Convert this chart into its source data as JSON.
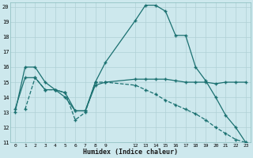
{
  "xlabel": "Humidex (Indice chaleur)",
  "background_color": "#cde8ed",
  "grid_color": "#b0d0d5",
  "line_color": "#1a7070",
  "xlim": [
    -0.5,
    23.5
  ],
  "ylim": [
    11,
    20.3
  ],
  "yticks": [
    11,
    12,
    13,
    14,
    15,
    16,
    17,
    18,
    19,
    20
  ],
  "xtick_vals": [
    0,
    1,
    2,
    3,
    4,
    5,
    6,
    7,
    8,
    9,
    12,
    13,
    14,
    15,
    16,
    17,
    18,
    19,
    20,
    21,
    22,
    23
  ],
  "xtick_labels": [
    "0",
    "1",
    "2",
    "3",
    "4",
    "5",
    "6",
    "7",
    "8",
    "9",
    "12",
    "13",
    "14",
    "15",
    "16",
    "17",
    "18",
    "19",
    "20",
    "21",
    "22",
    "23"
  ],
  "line1_x": [
    0,
    1,
    2,
    3,
    4,
    5,
    6,
    7,
    8,
    9,
    12,
    13,
    14,
    15,
    16,
    17,
    18,
    19,
    20,
    21,
    22,
    23
  ],
  "line1_y": [
    13.0,
    16.0,
    16.0,
    15.0,
    14.5,
    14.0,
    13.1,
    13.1,
    15.0,
    16.3,
    19.1,
    20.1,
    20.1,
    19.7,
    18.1,
    18.1,
    16.0,
    15.1,
    14.0,
    12.8,
    12.0,
    11.0
  ],
  "line2_x": [
    0,
    1,
    2,
    3,
    4,
    5,
    6,
    7,
    8,
    9,
    12,
    13,
    14,
    15,
    16,
    17,
    18,
    19,
    20,
    21,
    22,
    23
  ],
  "line2_y": [
    13.2,
    15.3,
    15.3,
    14.5,
    14.5,
    14.3,
    13.1,
    13.1,
    14.8,
    15.0,
    15.2,
    15.2,
    15.2,
    15.2,
    15.1,
    15.0,
    15.0,
    15.0,
    14.9,
    15.0,
    15.0,
    15.0
  ],
  "line3_x": [
    1,
    2,
    3,
    4,
    5,
    6,
    7,
    8,
    9,
    12,
    13,
    14,
    15,
    16,
    17,
    18,
    19,
    20,
    21,
    22,
    23
  ],
  "line3_y": [
    13.2,
    15.3,
    14.5,
    14.5,
    14.3,
    12.5,
    13.0,
    15.0,
    15.0,
    14.8,
    14.5,
    14.2,
    13.8,
    13.5,
    13.2,
    12.9,
    12.5,
    12.0,
    11.6,
    11.2,
    11.0
  ]
}
